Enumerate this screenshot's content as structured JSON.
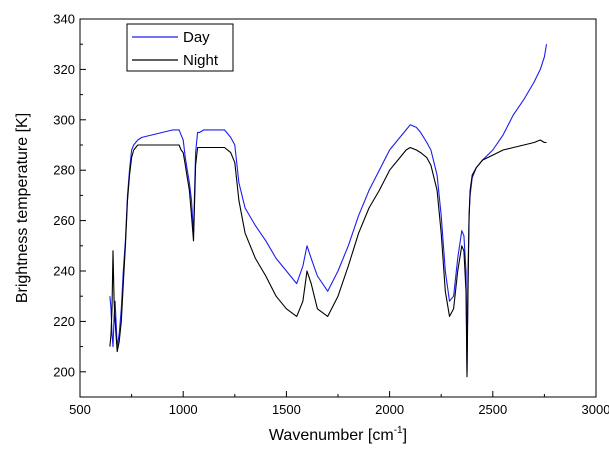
{
  "chart_data": {
    "type": "line",
    "xlabel": "Wavenumber [cm",
    "xlabel_sup": "-1",
    "xlabel_tail": "]",
    "ylabel": "Brightness temperature [K]",
    "xlim": [
      500,
      3000
    ],
    "ylim": [
      190,
      340
    ],
    "xticks": [
      500,
      1000,
      1500,
      2000,
      2500,
      3000
    ],
    "yticks": [
      200,
      220,
      240,
      260,
      280,
      300,
      320,
      340
    ],
    "grid": false,
    "legend_position": "top-left",
    "series": [
      {
        "name": "Day",
        "color": "#1c1cf0",
        "x": [
          645,
          650,
          655,
          660,
          665,
          670,
          680,
          690,
          700,
          710,
          720,
          730,
          740,
          750,
          760,
          770,
          780,
          800,
          850,
          900,
          950,
          980,
          990,
          1000,
          1010,
          1020,
          1030,
          1040,
          1050,
          1060,
          1070,
          1080,
          1100,
          1150,
          1200,
          1230,
          1250,
          1270,
          1300,
          1350,
          1400,
          1450,
          1500,
          1550,
          1580,
          1600,
          1620,
          1650,
          1700,
          1750,
          1800,
          1850,
          1900,
          1950,
          2000,
          2050,
          2080,
          2100,
          2130,
          2150,
          2180,
          2200,
          2230,
          2250,
          2270,
          2290,
          2310,
          2330,
          2350,
          2360,
          2370,
          2375,
          2380,
          2385,
          2390,
          2400,
          2420,
          2450,
          2500,
          2550,
          2600,
          2650,
          2700,
          2730,
          2750,
          2760
        ],
        "y": [
          230,
          225,
          215,
          210,
          222,
          228,
          210,
          215,
          225,
          240,
          252,
          270,
          280,
          288,
          290,
          291,
          292,
          293,
          294,
          295,
          296,
          296,
          294,
          292,
          285,
          280,
          275,
          268,
          255,
          287,
          295,
          295,
          296,
          296,
          296,
          293,
          290,
          275,
          265,
          258,
          252,
          245,
          240,
          235,
          242,
          250,
          245,
          238,
          232,
          240,
          250,
          262,
          272,
          280,
          288,
          293,
          296,
          298,
          297,
          295,
          291,
          288,
          278,
          262,
          240,
          228,
          230,
          245,
          256,
          254,
          240,
          200,
          240,
          262,
          270,
          277,
          281,
          284,
          288,
          294,
          302,
          308,
          315,
          320,
          325,
          330
        ]
      },
      {
        "name": "Night",
        "color": "#000000",
        "x": [
          645,
          650,
          655,
          660,
          665,
          670,
          680,
          690,
          700,
          710,
          720,
          730,
          740,
          750,
          760,
          770,
          780,
          800,
          850,
          900,
          950,
          980,
          990,
          1000,
          1010,
          1020,
          1030,
          1040,
          1050,
          1060,
          1070,
          1080,
          1100,
          1150,
          1200,
          1230,
          1250,
          1270,
          1300,
          1350,
          1400,
          1450,
          1500,
          1550,
          1580,
          1600,
          1620,
          1650,
          1700,
          1750,
          1800,
          1850,
          1900,
          1950,
          2000,
          2050,
          2080,
          2100,
          2130,
          2150,
          2180,
          2200,
          2230,
          2250,
          2270,
          2290,
          2310,
          2330,
          2350,
          2360,
          2370,
          2375,
          2380,
          2385,
          2390,
          2400,
          2420,
          2450,
          2500,
          2550,
          2600,
          2650,
          2700,
          2730,
          2750,
          2760
        ],
        "y": [
          210,
          215,
          225,
          248,
          228,
          220,
          208,
          212,
          220,
          235,
          250,
          268,
          278,
          285,
          288,
          289,
          290,
          290,
          290,
          290,
          290,
          290,
          288,
          287,
          282,
          277,
          272,
          262,
          252,
          282,
          289,
          289,
          289,
          289,
          289,
          287,
          283,
          268,
          255,
          245,
          238,
          230,
          225,
          222,
          228,
          240,
          235,
          225,
          222,
          230,
          242,
          255,
          265,
          272,
          280,
          285,
          288,
          289,
          288,
          287,
          285,
          282,
          272,
          255,
          232,
          222,
          225,
          240,
          250,
          248,
          232,
          198,
          232,
          262,
          272,
          278,
          281,
          284,
          286,
          288,
          289,
          290,
          291,
          292,
          291,
          291
        ]
      }
    ]
  }
}
